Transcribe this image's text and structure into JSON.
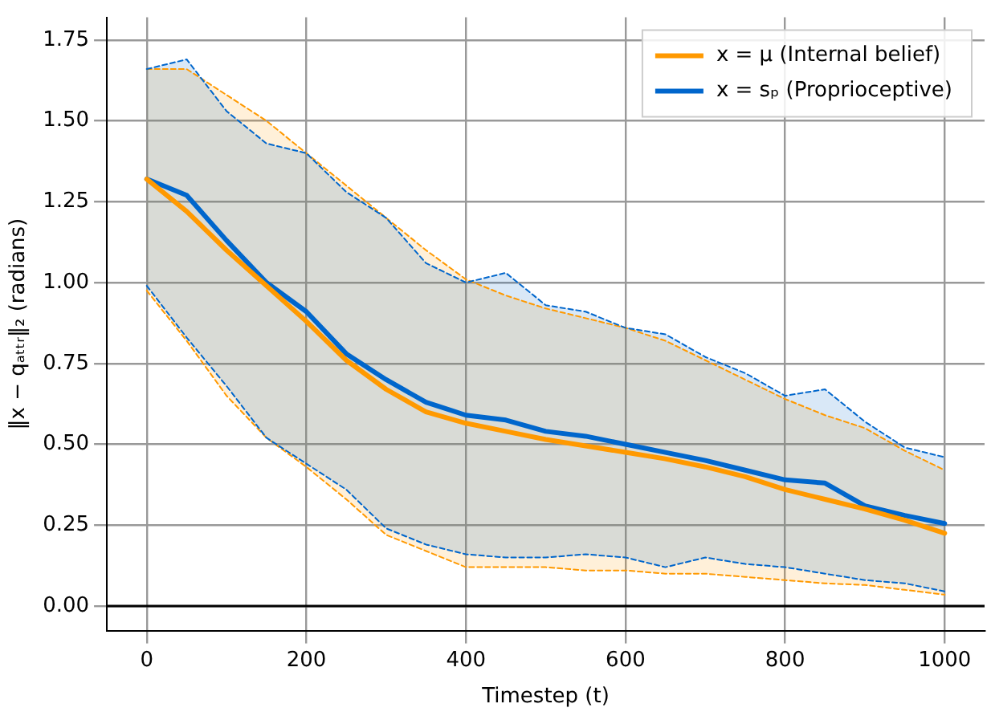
{
  "chart_data": {
    "type": "line",
    "xlabel": "Timestep (t)",
    "ylabel": "‖x − qₐₜₜᵣ‖₂ (radians)",
    "x": [
      0,
      50,
      100,
      150,
      200,
      250,
      300,
      350,
      400,
      450,
      500,
      550,
      600,
      650,
      700,
      750,
      800,
      850,
      900,
      950,
      1000
    ],
    "series": [
      {
        "color": "#ff9900",
        "line_style": "dashed",
        "values": [
          1.66,
          1.66,
          1.58,
          1.5,
          1.4,
          1.3,
          1.2,
          1.1,
          1.01,
          0.96,
          0.92,
          0.89,
          0.86,
          0.82,
          0.76,
          0.7,
          0.64,
          0.59,
          0.55,
          0.48,
          0.42
        ]
      },
      {
        "color": "#ff9900",
        "line_style": "dashed",
        "values": [
          0.975,
          0.82,
          0.65,
          0.52,
          0.43,
          0.33,
          0.22,
          0.17,
          0.12,
          0.12,
          0.12,
          0.11,
          0.11,
          0.1,
          0.1,
          0.09,
          0.08,
          0.07,
          0.065,
          0.05,
          0.035
        ]
      },
      {
        "color": "#0066cc",
        "line_style": "dashed",
        "values": [
          1.66,
          1.69,
          1.53,
          1.43,
          1.4,
          1.28,
          1.2,
          1.06,
          1.0,
          1.03,
          0.93,
          0.91,
          0.86,
          0.84,
          0.77,
          0.72,
          0.65,
          0.67,
          0.57,
          0.49,
          0.46
        ]
      },
      {
        "color": "#0066cc",
        "line_style": "dashed",
        "values": [
          0.99,
          0.83,
          0.68,
          0.52,
          0.44,
          0.36,
          0.24,
          0.19,
          0.16,
          0.15,
          0.15,
          0.16,
          0.15,
          0.12,
          0.15,
          0.13,
          0.12,
          0.1,
          0.08,
          0.07,
          0.045
        ]
      },
      {
        "name": "x = μ (Internal belief)",
        "color": "#ff9900",
        "values": [
          1.32,
          1.22,
          1.1,
          0.99,
          0.88,
          0.76,
          0.67,
          0.6,
          0.565,
          0.54,
          0.515,
          0.495,
          0.475,
          0.455,
          0.43,
          0.4,
          0.36,
          0.33,
          0.3,
          0.265,
          0.225
        ],
        "lower": [
          0.975,
          0.82,
          0.65,
          0.52,
          0.43,
          0.33,
          0.22,
          0.17,
          0.12,
          0.12,
          0.12,
          0.11,
          0.11,
          0.1,
          0.1,
          0.09,
          0.08,
          0.07,
          0.065,
          0.05,
          0.035
        ],
        "upper": [
          1.66,
          1.66,
          1.58,
          1.5,
          1.4,
          1.3,
          1.2,
          1.1,
          1.01,
          0.96,
          0.92,
          0.89,
          0.86,
          0.82,
          0.76,
          0.7,
          0.64,
          0.59,
          0.55,
          0.48,
          0.42
        ]
      },
      {
        "name": "x = sₚ (Proprioceptive)",
        "color": "#0066cc",
        "values": [
          1.32,
          1.27,
          1.13,
          1.0,
          0.91,
          0.78,
          0.7,
          0.63,
          0.59,
          0.575,
          0.54,
          0.525,
          0.5,
          0.475,
          0.45,
          0.42,
          0.39,
          0.38,
          0.31,
          0.28,
          0.255
        ],
        "lower": [
          0.99,
          0.83,
          0.68,
          0.52,
          0.44,
          0.36,
          0.24,
          0.19,
          0.16,
          0.15,
          0.15,
          0.16,
          0.15,
          0.12,
          0.15,
          0.13,
          0.12,
          0.1,
          0.08,
          0.07,
          0.045
        ],
        "upper": [
          1.66,
          1.69,
          1.53,
          1.43,
          1.4,
          1.28,
          1.2,
          1.06,
          1.0,
          1.03,
          0.93,
          0.91,
          0.86,
          0.84,
          0.77,
          0.72,
          0.65,
          0.67,
          0.57,
          0.49,
          0.46
        ]
      }
    ],
    "xlim": [
      -50,
      1050
    ],
    "xticks": [
      0,
      200,
      400,
      600,
      800,
      1000
    ],
    "ylim": [
      -0.076,
      1.82
    ],
    "yticks": [
      {
        "value": 0,
        "label": "0.00"
      },
      {
        "value": 0.25,
        "label": "0.25"
      },
      {
        "value": 0.5,
        "label": "0.50"
      },
      {
        "value": 0.75,
        "label": "0.75"
      },
      {
        "value": 1,
        "label": "1.00"
      },
      {
        "value": 1.25,
        "label": "1.25"
      },
      {
        "value": 1.5,
        "label": "1.50"
      },
      {
        "value": 1.75,
        "label": "1.75"
      }
    ],
    "ref_lines": [
      {
        "axis": "y",
        "value": 0,
        "color": "#000000"
      }
    ],
    "grid": true,
    "legend": "top right",
    "marker": "none",
    "line_style": "solid"
  }
}
